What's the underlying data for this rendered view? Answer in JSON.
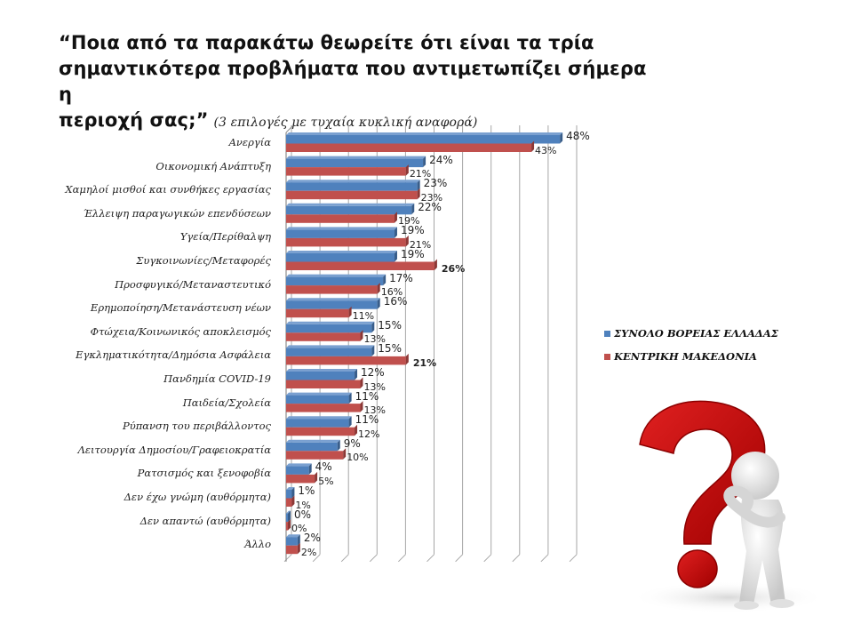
{
  "title": {
    "main": "“Ποια από τα παρακάτω θεωρείτε ότι είναι τα τρία σημαντικότερα προβλήματα που αντιμετωπίζει σήμερα η περιοχή σας;”",
    "line1": "“Ποια από τα παρακάτω θεωρείτε ότι είναι τα τρία",
    "line2": "σημαντικότερα προβλήματα που αντιμετωπίζει σήμερα η",
    "line3": "περιοχή σας;”",
    "subtitle": "(3 επιλογές με τυχαία κυκλική αναφορά)"
  },
  "legend": {
    "items": [
      {
        "label": "ΣΥΝΟΛΟ ΒΟΡΕΙΑΣ ΕΛΛΑΔΑΣ",
        "color": "#4f81bd"
      },
      {
        "label": "ΚΕΝΤΡΙΚΗ ΜΑΚΕΔΟΝΙΑ",
        "color": "#c0504d"
      }
    ]
  },
  "colors": {
    "series1": "#4f81bd",
    "series1_dark": "#385d8a",
    "series2": "#c0504d",
    "series2_dark": "#8c3836",
    "grid": "#a6a6a6"
  },
  "illustration": {
    "name": "question-mark-figure"
  },
  "chart_data": {
    "type": "bar",
    "orientation": "horizontal",
    "title": "“Ποια από τα παρακάτω θεωρείτε ότι είναι τα τρία σημαντικότερα προβλήματα που αντιμετωπίζει σήμερα η περιοχή σας;” (3 επιλογές με τυχαία κυκλική αναφορά)",
    "xlabel": "",
    "ylabel": "",
    "xlim": [
      0,
      50
    ],
    "grid": true,
    "legend_position": "right",
    "categories": [
      "Ανεργία",
      "Οικονομική Ανάπτυξη",
      "Χαμηλοί μισθοί και συνθήκες εργασίας",
      "Έλλειψη παραγωγικών επενδύσεων",
      "Υγεία/Περίθαλψη",
      "Συγκοινωνίες/Μεταφορές",
      "Προσφυγικό/Μεταναστευτικό",
      "Ερημοποίηση/Μετανάστευση νέων",
      "Φτώχεια/Κοινωνικός αποκλεισμός",
      "Εγκληματικότητα/Δημόσια Ασφάλεια",
      "Πανδημία COVID-19",
      "Παιδεία/Σχολεία",
      "Ρύπανση του περιβάλλοντος",
      "Λειτουργία Δημοσίου/Γραφειοκρατία",
      "Ρατσισμός και ξενοφοβία",
      "Δεν έχω γνώμη (αυθόρμητα)",
      "Δεν απαντώ (αυθόρμητα)",
      "Άλλο"
    ],
    "series": [
      {
        "name": "ΣΥΝΟΛΟ ΒΟΡΕΙΑΣ ΕΛΛΑΔΑΣ",
        "values": [
          48,
          24,
          23,
          22,
          19,
          19,
          17,
          16,
          15,
          15,
          12,
          11,
          11,
          9,
          4,
          1,
          0,
          2
        ]
      },
      {
        "name": "ΚΕΝΤΡΙΚΗ ΜΑΚΕΔΟΝΙΑ",
        "values": [
          43,
          21,
          23,
          19,
          21,
          26,
          16,
          11,
          13,
          21,
          13,
          13,
          12,
          10,
          5,
          1,
          0,
          2
        ]
      }
    ],
    "value_labels": {
      "series1": [
        "48%",
        "24%",
        "23%",
        "22%",
        "19%",
        "19%",
        "17%",
        "16%",
        "15%",
        "15%",
        "12%",
        "11%",
        "11%",
        "9%",
        "4%",
        "1%",
        "0%",
        "2%"
      ],
      "series2": [
        "43%",
        "21%",
        "23%",
        "19%",
        "21%",
        "26%",
        "16%",
        "11%",
        "13%",
        "21%",
        "13%",
        "13%",
        "12%",
        "10%",
        "5%",
        "1%",
        "0%",
        "2%"
      ]
    }
  }
}
